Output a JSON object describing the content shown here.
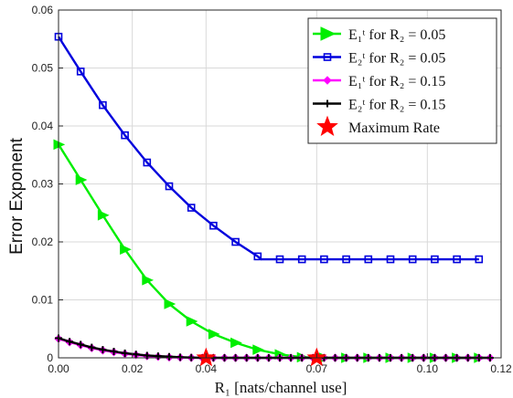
{
  "chart_data": {
    "type": "line",
    "xlabel": "R₁ [nats/channel use]",
    "ylabel": "Error Exponent",
    "xlim": [
      0,
      0.12
    ],
    "ylim": [
      0,
      0.06
    ],
    "xticks": [
      0,
      0.02,
      0.04,
      0.07,
      0.1,
      0.12
    ],
    "xtick_labels": [
      "0.00",
      "0.02",
      "0.04",
      "0.07",
      "0.10",
      "0.12"
    ],
    "yticks": [
      0,
      0.01,
      0.02,
      0.03,
      0.04,
      0.05,
      0.06
    ],
    "ytick_labels": [
      "0",
      "0.01",
      "0.02",
      "0.03",
      "0.04",
      "0.05",
      "0.06"
    ],
    "grid": true,
    "legend_position": "top-right",
    "series": [
      {
        "name": "E₁ᵗ for R₂ = 0.05",
        "color": "#00ee00",
        "marker": "triangle-right",
        "x": [
          0,
          0.006,
          0.012,
          0.018,
          0.024,
          0.03,
          0.036,
          0.042,
          0.048,
          0.054,
          0.06,
          0.066,
          0.072,
          0.078,
          0.084,
          0.09,
          0.096,
          0.102,
          0.108,
          0.114
        ],
        "y": [
          0.0368,
          0.0307,
          0.0246,
          0.0187,
          0.0134,
          0.0093,
          0.0063,
          0.0041,
          0.0026,
          0.0014,
          0.0006,
          0.0001,
          0,
          0,
          0,
          0,
          0,
          0,
          0,
          0
        ]
      },
      {
        "name": "E₂ᵗ for R₂ = 0.05",
        "color": "#0000dd",
        "marker": "square",
        "x": [
          0,
          0.006,
          0.012,
          0.018,
          0.024,
          0.03,
          0.036,
          0.042,
          0.048,
          0.054,
          0.06,
          0.066,
          0.072,
          0.078,
          0.084,
          0.09,
          0.096,
          0.102,
          0.108,
          0.114
        ],
        "y": [
          0.0554,
          0.0494,
          0.0436,
          0.0384,
          0.0337,
          0.0296,
          0.0259,
          0.0228,
          0.02,
          0.0175,
          0.017,
          0.017,
          0.017,
          0.017,
          0.017,
          0.017,
          0.017,
          0.017,
          0.017,
          0.017
        ],
        "kink": [
          0.055,
          0.017
        ]
      },
      {
        "name": "E₁ᵗ for R₂ = 0.15",
        "color": "#ff00ff",
        "marker": "diamond",
        "x": [
          0,
          0.003,
          0.006,
          0.009,
          0.012,
          0.015,
          0.018,
          0.021,
          0.024,
          0.027,
          0.03,
          0.033,
          0.036,
          0.039,
          0.042,
          0.045,
          0.048,
          0.051,
          0.054,
          0.057,
          0.06,
          0.063,
          0.066,
          0.069,
          0.072,
          0.075,
          0.078,
          0.081,
          0.084,
          0.087,
          0.09,
          0.093,
          0.096,
          0.099,
          0.102,
          0.105,
          0.108,
          0.111,
          0.114,
          0.117
        ],
        "y": [
          0.0033,
          0.0027,
          0.0022,
          0.0017,
          0.0013,
          0.001,
          0.0007,
          0.0005,
          0.0003,
          0.0002,
          0.0001,
          5e-05,
          2e-05,
          0,
          0,
          0,
          0,
          0,
          0,
          0,
          0,
          0,
          0,
          0,
          0,
          0,
          0,
          0,
          0,
          0,
          0,
          0,
          0,
          0,
          0,
          0,
          0,
          0,
          0,
          0
        ]
      },
      {
        "name": "E₂ᵗ for R₂ = 0.15",
        "color": "#000000",
        "marker": "plus",
        "x": [
          0,
          0.003,
          0.006,
          0.009,
          0.012,
          0.015,
          0.018,
          0.021,
          0.024,
          0.027,
          0.03,
          0.033,
          0.036,
          0.039,
          0.042,
          0.045,
          0.048,
          0.051,
          0.054,
          0.057,
          0.06,
          0.063,
          0.066,
          0.069,
          0.072,
          0.075,
          0.078,
          0.081,
          0.084,
          0.087,
          0.09,
          0.093,
          0.096,
          0.099,
          0.102,
          0.105,
          0.108,
          0.111,
          0.114,
          0.117
        ],
        "y": [
          0.0034,
          0.0028,
          0.0023,
          0.0018,
          0.0014,
          0.0011,
          0.0008,
          0.0006,
          0.0004,
          0.0003,
          0.0002,
          0.0001,
          5e-05,
          0,
          0,
          0,
          0,
          0,
          0,
          0,
          0,
          0,
          0,
          0,
          0,
          0,
          0,
          0,
          0,
          0,
          0,
          0,
          0,
          0,
          0,
          0,
          0,
          0,
          0,
          0
        ]
      }
    ],
    "max_rate": {
      "name": "Maximum Rate",
      "color": "#ff0000",
      "marker": "star",
      "points": [
        [
          0.04,
          0
        ],
        [
          0.07,
          0
        ]
      ]
    }
  }
}
